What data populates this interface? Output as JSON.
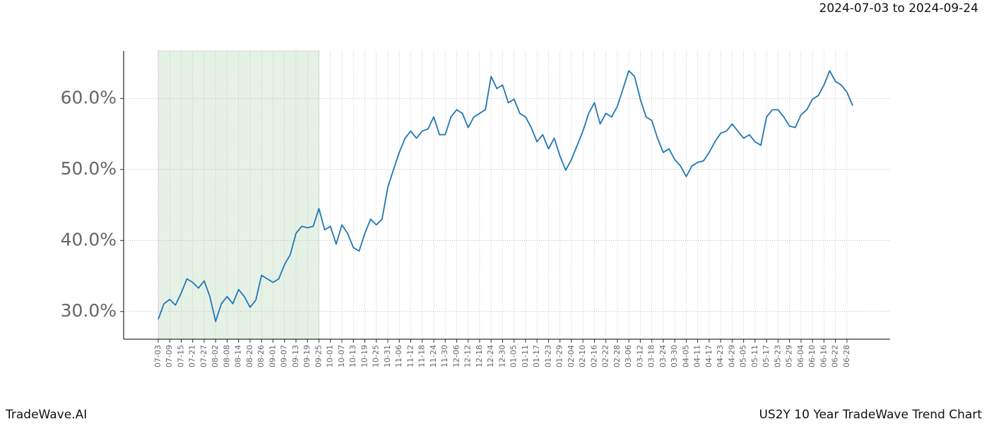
{
  "chart_data": {
    "type": "line",
    "date_range": "2024-07-03 to 2024-09-24",
    "brand": "TradeWave.AI",
    "title": "US2Y 10 Year TradeWave Trend Chart",
    "categories": [
      "07-03",
      null,
      "07-09",
      null,
      "07-15",
      null,
      "07-21",
      null,
      "07-27",
      null,
      "08-02",
      null,
      "08-08",
      null,
      "08-14",
      null,
      "08-20",
      null,
      "08-26",
      null,
      "09-01",
      null,
      "09-07",
      null,
      "09-13",
      null,
      "09-19",
      null,
      "09-25",
      null,
      "10-01",
      null,
      "10-07",
      null,
      "10-13",
      null,
      "10-19",
      null,
      "10-25",
      null,
      "10-31",
      null,
      "11-06",
      null,
      "11-12",
      null,
      "11-18",
      null,
      "11-24",
      null,
      "11-30",
      null,
      "12-06",
      null,
      "12-12",
      null,
      "12-18",
      null,
      "12-24",
      null,
      "12-30",
      null,
      "01-05",
      null,
      "01-11",
      null,
      "01-17",
      null,
      "01-23",
      null,
      "01-29",
      null,
      "02-04",
      null,
      "02-10",
      null,
      "02-16",
      null,
      "02-22",
      null,
      "02-28",
      null,
      "03-06",
      null,
      "03-12",
      null,
      "03-18",
      null,
      "03-24",
      null,
      "03-30",
      null,
      "04-05",
      null,
      "04-11",
      null,
      "04-17",
      null,
      "04-23",
      null,
      "04-29",
      null,
      "05-05",
      null,
      "05-11",
      null,
      "05-17",
      null,
      "05-23",
      null,
      "05-29",
      null,
      "06-04",
      null,
      "06-10",
      null,
      "06-16",
      null,
      "06-22",
      null,
      "06-28",
      null
    ],
    "series": [
      {
        "color": "#1f77b4",
        "values": [
          28.9,
          31.1,
          31.7,
          30.9,
          32.6,
          34.6,
          34.1,
          33.3,
          34.3,
          32.1,
          28.6,
          31.1,
          32.1,
          31.1,
          33.1,
          32.1,
          30.6,
          31.6,
          35.1,
          34.6,
          34.1,
          34.6,
          36.6,
          38.0,
          41.0,
          42.0,
          41.8,
          42.0,
          44.5,
          41.5,
          42.0,
          39.5,
          42.2,
          41.0,
          39.0,
          38.5,
          41.0,
          43.0,
          42.2,
          43.0,
          47.5,
          50.0,
          52.4,
          54.4,
          55.4,
          54.4,
          55.4,
          55.7,
          57.4,
          54.9,
          54.9,
          57.4,
          58.4,
          57.9,
          55.9,
          57.4,
          57.9,
          58.4,
          63.1,
          61.4,
          61.9,
          59.4,
          59.9,
          57.9,
          57.4,
          55.9,
          53.9,
          54.9,
          52.9,
          54.4,
          51.9,
          49.9,
          51.4,
          53.4,
          55.4,
          57.9,
          59.4,
          56.4,
          57.9,
          57.4,
          58.9,
          61.4,
          63.9,
          63.1,
          59.9,
          57.4,
          56.9,
          54.4,
          52.4,
          52.9,
          51.4,
          50.5,
          49.0,
          50.5,
          51.0,
          51.2,
          52.4,
          53.9,
          55.1,
          55.4,
          56.4,
          55.4,
          54.4,
          54.9,
          53.9,
          53.4,
          57.4,
          58.4,
          58.4,
          57.4,
          56.1,
          55.9,
          57.7,
          58.4,
          59.9,
          60.4,
          61.9,
          63.9,
          62.4,
          61.9,
          60.9,
          59.0
        ]
      }
    ],
    "shade": {
      "from": "07-03",
      "to": "09-25",
      "color": "#e6f1e6"
    },
    "ylim": [
      26.1,
      66.7
    ],
    "yticks": [
      {
        "value": 30,
        "label": "30.0%"
      },
      {
        "value": 40,
        "label": "40.0%"
      },
      {
        "value": 50,
        "label": "50.0%"
      },
      {
        "value": 60,
        "label": "60.0%"
      }
    ],
    "grid": true
  }
}
